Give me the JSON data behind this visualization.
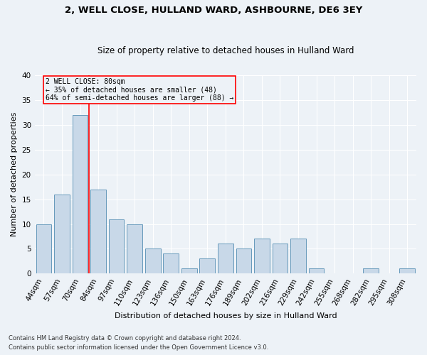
{
  "title1": "2, WELL CLOSE, HULLAND WARD, ASHBOURNE, DE6 3EY",
  "title2": "Size of property relative to detached houses in Hulland Ward",
  "xlabel": "Distribution of detached houses by size in Hulland Ward",
  "ylabel": "Number of detached properties",
  "categories": [
    "44sqm",
    "57sqm",
    "70sqm",
    "84sqm",
    "97sqm",
    "110sqm",
    "123sqm",
    "136sqm",
    "150sqm",
    "163sqm",
    "176sqm",
    "189sqm",
    "202sqm",
    "216sqm",
    "229sqm",
    "242sqm",
    "255sqm",
    "268sqm",
    "282sqm",
    "295sqm",
    "308sqm"
  ],
  "values": [
    10,
    16,
    32,
    17,
    11,
    10,
    5,
    4,
    1,
    3,
    6,
    5,
    7,
    6,
    7,
    1,
    0,
    0,
    1,
    0,
    1
  ],
  "bar_color": "#c8d8e8",
  "bar_edge_color": "#6699bb",
  "ylim": [
    0,
    40
  ],
  "yticks": [
    0,
    5,
    10,
    15,
    20,
    25,
    30,
    35,
    40
  ],
  "red_line_idx": 3,
  "annotation_title": "2 WELL CLOSE: 80sqm",
  "annotation_line1": "← 35% of detached houses are smaller (48)",
  "annotation_line2": "64% of semi-detached houses are larger (88) →",
  "footnote1": "Contains HM Land Registry data © Crown copyright and database right 2024.",
  "footnote2": "Contains public sector information licensed under the Open Government Licence v3.0.",
  "bg_color": "#edf2f7",
  "grid_color": "#ffffff",
  "title1_fontsize": 9.5,
  "title2_fontsize": 8.5,
  "axis_fontsize": 7.5,
  "ylabel_fontsize": 8,
  "xlabel_fontsize": 8
}
